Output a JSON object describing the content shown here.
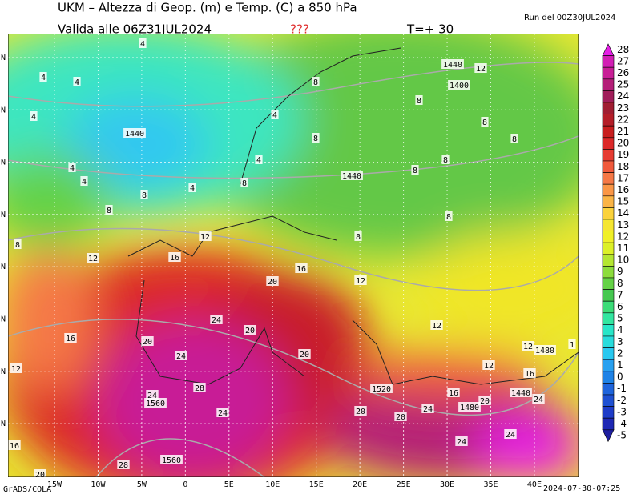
{
  "header": {
    "title": "UKM – Altezza di Geop. (m) e Temp. (C) a 850 hPa",
    "valid": "Valida alle 06Z31JUL2024",
    "flag": "???",
    "step": "T=+ 30",
    "run": "Run del 00Z30JUL2024"
  },
  "footer": {
    "credit": "GrADS/COLA",
    "timestamp": "2024-07-30-07:25"
  },
  "map": {
    "lon_labels": [
      "15W",
      "10W",
      "5W",
      "0",
      "5E",
      "10E",
      "15E",
      "20E",
      "25E",
      "30E",
      "35E",
      "40E"
    ],
    "lat_labels": [
      "N",
      "N",
      "N",
      "N",
      "N",
      "N",
      "N",
      "N"
    ],
    "contour_labels": [
      "4",
      "4",
      "4",
      "4",
      "1440",
      "4",
      "4",
      "4",
      "4",
      "4",
      "8",
      "8",
      "8",
      "8",
      "8",
      "8",
      "1440",
      "1440",
      "12",
      "1400",
      "8",
      "8",
      "8",
      "8",
      "8",
      "8",
      "8",
      "12",
      "12",
      "16",
      "16",
      "20",
      "12",
      "16",
      "24",
      "20",
      "20",
      "24",
      "20",
      "12",
      "12",
      "1480",
      "1",
      "12",
      "12",
      "16",
      "1520",
      "16",
      "28",
      "24",
      "1560",
      "1440",
      "24",
      "20",
      "1480",
      "20",
      "24",
      "24",
      "20",
      "24",
      "24",
      "16",
      "1560",
      "28",
      "20"
    ]
  },
  "colorbar": {
    "levels": [
      28,
      27,
      26,
      25,
      24,
      23,
      22,
      21,
      20,
      19,
      18,
      17,
      16,
      15,
      14,
      13,
      12,
      11,
      10,
      9,
      8,
      7,
      6,
      5,
      4,
      3,
      2,
      1,
      0,
      -1,
      -2,
      -3,
      -4,
      -5
    ],
    "colors": [
      "#e61ee6",
      "#d21eb4",
      "#c81e96",
      "#b41e78",
      "#a01e5a",
      "#a01e32",
      "#b41e28",
      "#c81e1e",
      "#dc2828",
      "#e63c32",
      "#f05a3c",
      "#f57846",
      "#fa9646",
      "#fab446",
      "#fad23c",
      "#f5e632",
      "#f0f028",
      "#dcf028",
      "#b4e632",
      "#8cdc3c",
      "#64d246",
      "#46c850",
      "#3cdc78",
      "#32e6a0",
      "#28e6c8",
      "#28dcdc",
      "#28c8f0",
      "#28a0f0",
      "#1e82e6",
      "#1e64dc",
      "#1e50d2",
      "#1e3cc8",
      "#1e28b4",
      "#1e1ea0"
    ]
  }
}
